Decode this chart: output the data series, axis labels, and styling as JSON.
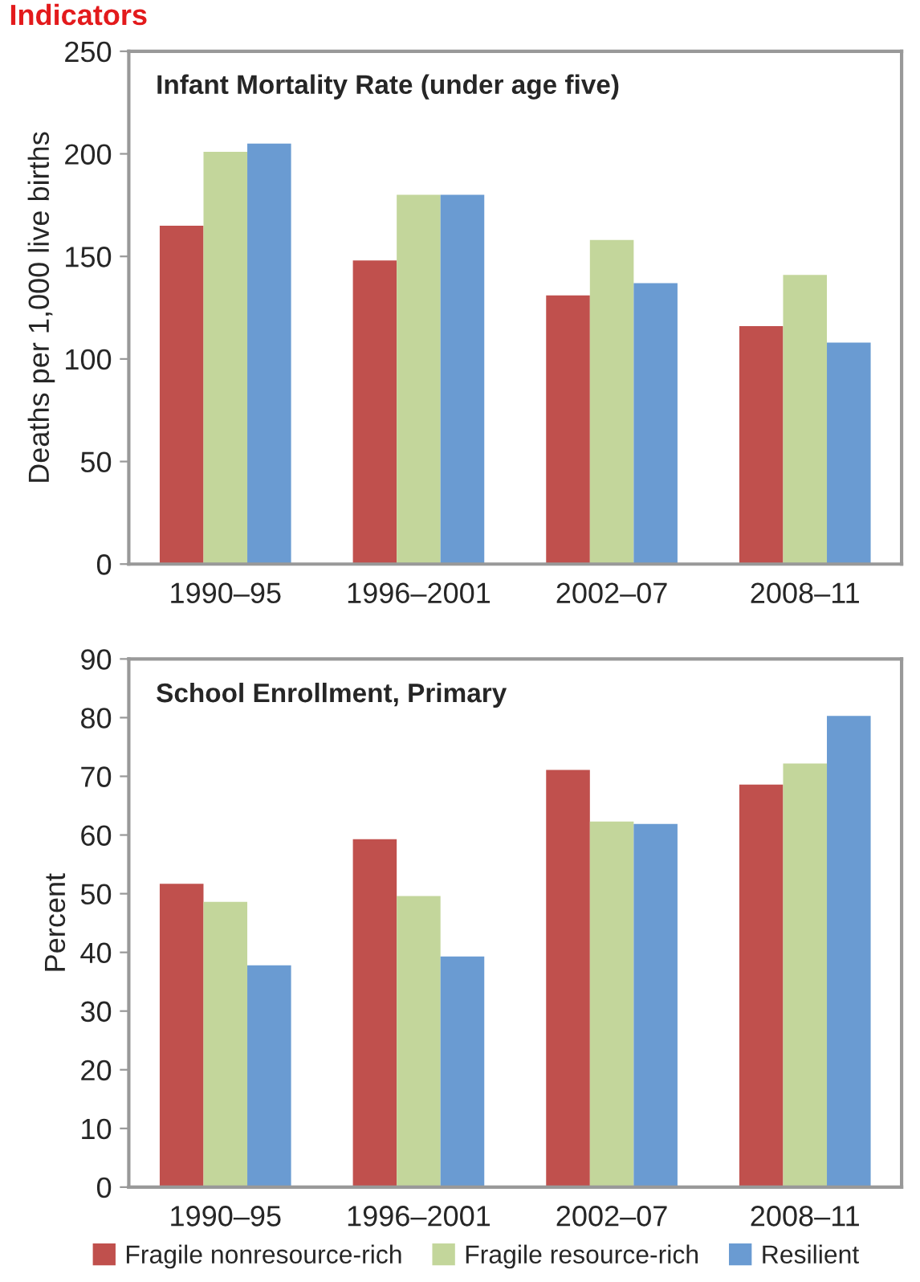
{
  "chart_data": [
    {
      "type": "bar",
      "title": "Infant Mortality Rate (under age five)",
      "ylabel": "Deaths per 1,000 live births",
      "annotations": [
        "Indicators"
      ],
      "categories": [
        "1990–95",
        "1996–2001",
        "2002–07",
        "2008–11"
      ],
      "series": [
        {
          "color": "#c0504d",
          "values": [
            165,
            148,
            131,
            116
          ]
        },
        {
          "color": "#c3d69b",
          "values": [
            201,
            180,
            158,
            141
          ]
        },
        {
          "color": "#6a9bd2",
          "values": [
            205,
            180,
            137,
            108
          ]
        }
      ],
      "ylim": [
        0,
        250
      ],
      "yticks": [
        0,
        50,
        100,
        150,
        200,
        250
      ],
      "grid": false,
      "legend": false
    },
    {
      "type": "bar",
      "title": "School Enrollment, Primary",
      "ylabel": "Percent",
      "categories": [
        "1990–95",
        "1996–2001",
        "2002–07",
        "2008–11"
      ],
      "series": [
        {
          "name": "Fragile nonresource-rich",
          "color": "#c0504d",
          "values": [
            51.7,
            59.3,
            71.1,
            68.6
          ]
        },
        {
          "name": "Fragile resource-rich",
          "color": "#c3d69b",
          "values": [
            48.6,
            49.6,
            62.3,
            72.2
          ]
        },
        {
          "name": "Resilient",
          "color": "#6a9bd2",
          "values": [
            37.8,
            39.3,
            61.9,
            80.3
          ]
        }
      ],
      "ylim": [
        0,
        90
      ],
      "yticks": [
        0,
        10,
        20,
        30,
        40,
        50,
        60,
        70,
        80,
        90
      ],
      "grid": false,
      "legend": "bottom"
    }
  ]
}
